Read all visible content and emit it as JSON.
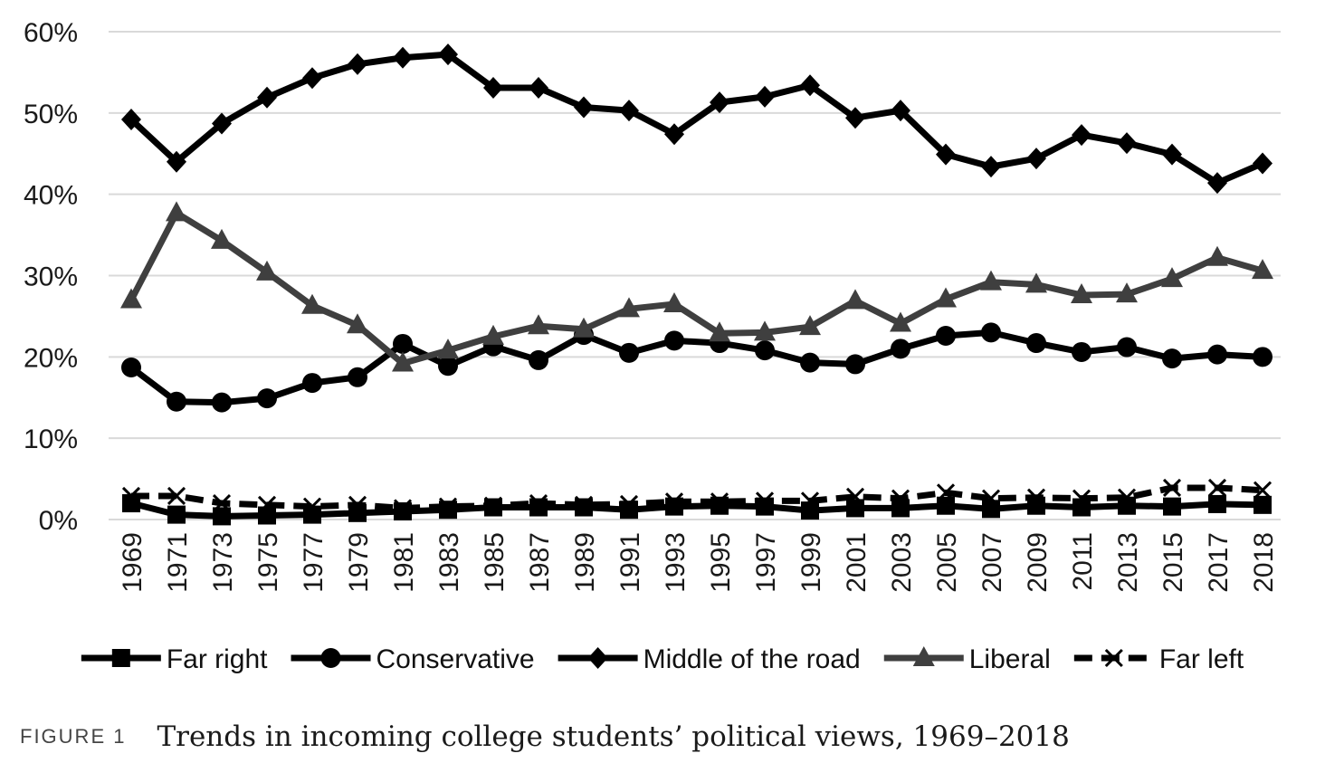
{
  "chart_data": {
    "type": "line",
    "x": [
      "1969",
      "1971",
      "1973",
      "1975",
      "1977",
      "1979",
      "1981",
      "1983",
      "1985",
      "1987",
      "1989",
      "1991",
      "1993",
      "1995",
      "1997",
      "1999",
      "2001",
      "2003",
      "2005",
      "2007",
      "2009",
      "2011",
      "2013",
      "2015",
      "2017",
      "2018"
    ],
    "ylim": [
      0,
      60
    ],
    "yticks": [
      "0%",
      "10%",
      "20%",
      "30%",
      "40%",
      "50%",
      "60%"
    ],
    "grid": true,
    "legend_position": "bottom",
    "series": [
      {
        "name": "Far right",
        "marker": "square",
        "color": "#000000",
        "values": [
          2.0,
          0.6,
          0.4,
          0.5,
          0.6,
          0.8,
          1.0,
          1.2,
          1.5,
          1.5,
          1.5,
          1.2,
          1.6,
          1.7,
          1.6,
          1.1,
          1.4,
          1.4,
          1.7,
          1.3,
          1.7,
          1.5,
          1.7,
          1.6,
          1.9,
          1.8
        ]
      },
      {
        "name": "Conservative",
        "marker": "circle",
        "color": "#000000",
        "values": [
          18.7,
          14.5,
          14.4,
          14.9,
          16.8,
          17.5,
          21.6,
          18.9,
          21.3,
          19.6,
          22.7,
          20.5,
          22.0,
          21.7,
          20.8,
          19.3,
          19.1,
          21.0,
          22.6,
          23.0,
          21.7,
          20.6,
          21.2,
          19.8,
          20.3,
          20.0
        ]
      },
      {
        "name": "Middle of the road",
        "marker": "diamond",
        "color": "#000000",
        "values": [
          49.2,
          44.0,
          48.7,
          51.9,
          54.3,
          56.0,
          56.8,
          57.2,
          53.1,
          53.1,
          50.7,
          50.3,
          47.4,
          51.3,
          52.0,
          53.4,
          49.4,
          50.3,
          44.9,
          43.4,
          44.4,
          47.3,
          46.3,
          44.9,
          41.4,
          43.8
        ]
      },
      {
        "name": "Liberal",
        "marker": "triangle",
        "color": "#3f3f3f",
        "values": [
          27.0,
          37.7,
          34.3,
          30.4,
          26.3,
          23.9,
          19.2,
          20.8,
          22.5,
          23.8,
          23.4,
          25.9,
          26.5,
          22.9,
          23.0,
          23.7,
          26.9,
          24.1,
          27.1,
          29.2,
          28.9,
          27.6,
          27.7,
          29.6,
          32.2,
          30.6
        ]
      },
      {
        "name": "Far left",
        "marker": "x",
        "color": "#000000",
        "dashed": true,
        "values": [
          2.9,
          2.9,
          2.0,
          1.8,
          1.6,
          1.8,
          1.4,
          1.6,
          1.7,
          2.0,
          1.8,
          1.9,
          2.2,
          2.2,
          2.3,
          2.3,
          2.8,
          2.6,
          3.3,
          2.6,
          2.7,
          2.6,
          2.7,
          3.9,
          3.9,
          3.6
        ]
      }
    ]
  },
  "caption": {
    "label": "FIGURE 1",
    "title": "Trends in incoming college students’ political views, 1969–2018"
  }
}
